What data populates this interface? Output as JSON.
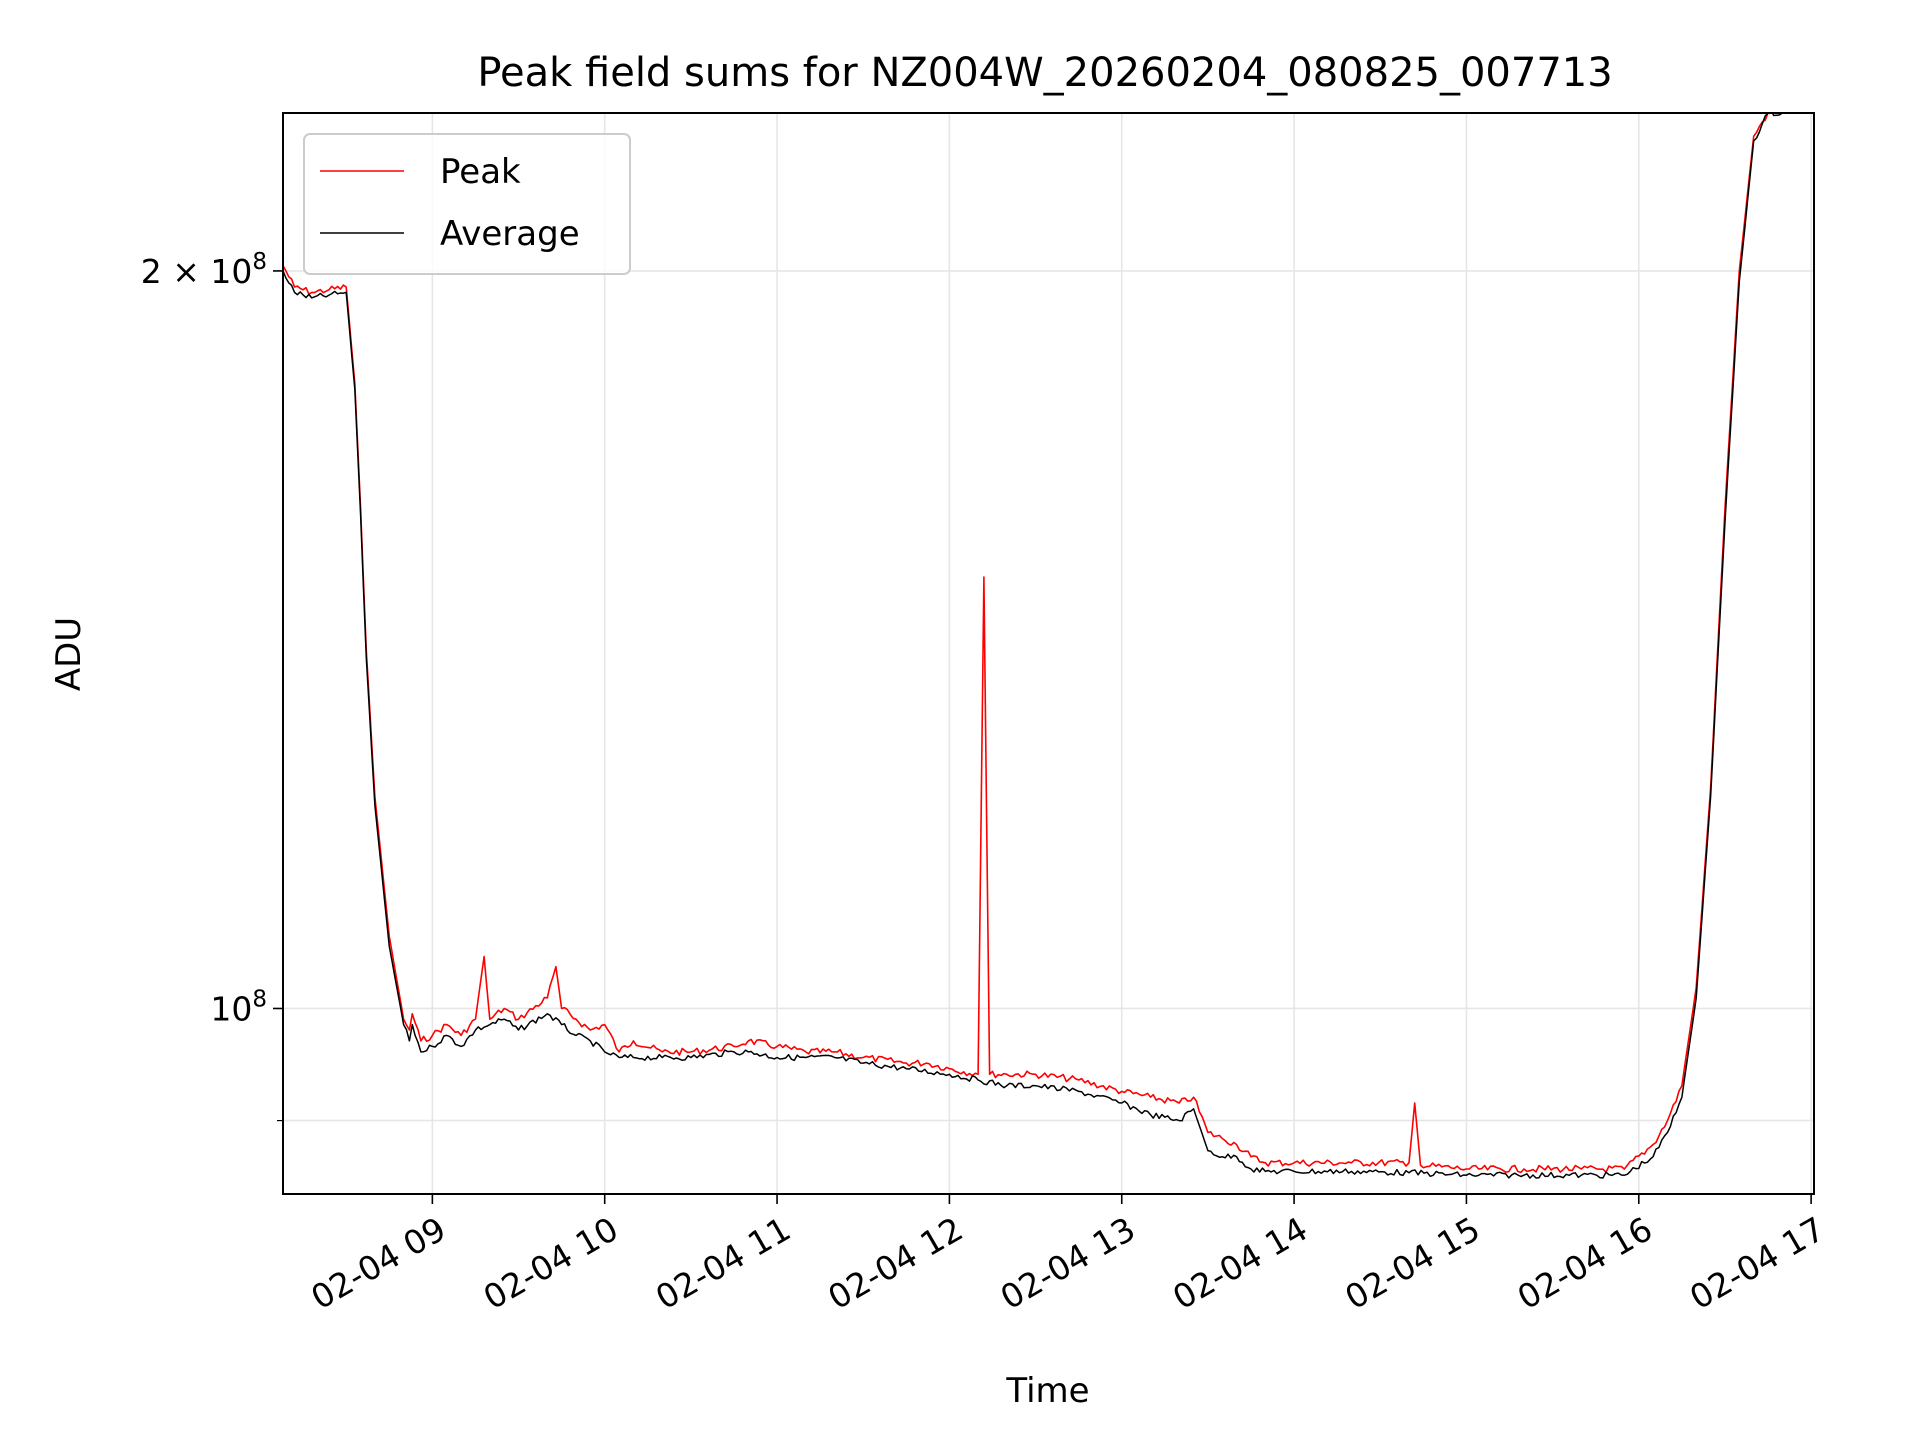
{
  "chart_data": {
    "type": "line",
    "title": "Peak field sums for NZ004W_20260204_080825_007713",
    "xlabel": "Time",
    "ylabel": "ADU",
    "yscale": "log",
    "ylim": [
      84000000,
      232000000
    ],
    "xlim": [
      "2026-02-04 08:08",
      "2026-02-04 17:01"
    ],
    "grid": true,
    "legend": "top-left",
    "x_ticks": [
      {
        "t": "2026-02-04 09:00",
        "label": "02-04 09"
      },
      {
        "t": "2026-02-04 10:00",
        "label": "02-04 10"
      },
      {
        "t": "2026-02-04 11:00",
        "label": "02-04 11"
      },
      {
        "t": "2026-02-04 12:00",
        "label": "02-04 12"
      },
      {
        "t": "2026-02-04 13:00",
        "label": "02-04 13"
      },
      {
        "t": "2026-02-04 14:00",
        "label": "02-04 14"
      },
      {
        "t": "2026-02-04 15:00",
        "label": "02-04 15"
      },
      {
        "t": "2026-02-04 16:00",
        "label": "02-04 16"
      },
      {
        "t": "2026-02-04 17:00",
        "label": "02-04 17"
      }
    ],
    "y_ticks": [
      {
        "value": 200000000,
        "base": "2 × 10",
        "exp": "8"
      },
      {
        "value": 100000000,
        "base": "10",
        "exp": "8"
      }
    ],
    "y_minor_ticks": [
      90000000
    ],
    "series": [
      {
        "name": "Peak",
        "color": "#ff0000",
        "x": [
          "2026-02-04 08:08",
          "2026-02-04 08:12",
          "2026-02-04 08:18",
          "2026-02-04 08:24",
          "2026-02-04 08:30",
          "2026-02-04 08:33",
          "2026-02-04 08:35",
          "2026-02-04 08:37",
          "2026-02-04 08:40",
          "2026-02-04 08:45",
          "2026-02-04 08:50",
          "2026-02-04 08:52",
          "2026-02-04 08:53",
          "2026-02-04 08:56",
          "2026-02-04 09:00",
          "2026-02-04 09:05",
          "2026-02-04 09:10",
          "2026-02-04 09:15",
          "2026-02-04 09:18",
          "2026-02-04 09:20",
          "2026-02-04 09:25",
          "2026-02-04 09:30",
          "2026-02-04 09:40",
          "2026-02-04 09:43",
          "2026-02-04 09:45",
          "2026-02-04 09:50",
          "2026-02-04 09:55",
          "2026-02-04 10:00",
          "2026-02-04 10:05",
          "2026-02-04 10:10",
          "2026-02-04 10:20",
          "2026-02-04 10:30",
          "2026-02-04 10:45",
          "2026-02-04 10:50",
          "2026-02-04 11:00",
          "2026-02-04 11:10",
          "2026-02-04 11:20",
          "2026-02-04 11:30",
          "2026-02-04 11:45",
          "2026-02-04 11:52",
          "2026-02-04 12:00",
          "2026-02-04 12:10",
          "2026-02-04 12:12",
          "2026-02-04 12:14",
          "2026-02-04 12:20",
          "2026-02-04 12:30",
          "2026-02-04 12:45",
          "2026-02-04 13:00",
          "2026-02-04 13:10",
          "2026-02-04 13:20",
          "2026-02-04 13:25",
          "2026-02-04 13:30",
          "2026-02-04 13:35",
          "2026-02-04 13:40",
          "2026-02-04 13:45",
          "2026-02-04 13:50",
          "2026-02-04 14:00",
          "2026-02-04 14:20",
          "2026-02-04 14:40",
          "2026-02-04 14:42",
          "2026-02-04 14:44",
          "2026-02-04 15:00",
          "2026-02-04 15:20",
          "2026-02-04 15:40",
          "2026-02-04 15:55",
          "2026-02-04 16:05",
          "2026-02-04 16:10",
          "2026-02-04 16:15",
          "2026-02-04 16:20",
          "2026-02-04 16:25",
          "2026-02-04 16:30",
          "2026-02-04 16:35",
          "2026-02-04 16:40",
          "2026-02-04 16:45",
          "2026-02-04 16:50"
        ],
        "y": [
          201000000,
          197000000,
          196000000,
          196500000,
          197000000,
          180000000,
          160000000,
          140000000,
          122000000,
          107000000,
          99000000,
          98000000,
          99500000,
          97000000,
          97500000,
          98500000,
          97500000,
          99000000,
          105000000,
          99000000,
          100000000,
          99000000,
          101000000,
          104000000,
          100000000,
          99000000,
          98000000,
          98500000,
          96000000,
          97000000,
          96000000,
          96000000,
          96500000,
          97000000,
          96500000,
          96000000,
          96000000,
          95500000,
          95000000,
          95000000,
          94500000,
          94000000,
          150000000,
          94000000,
          94000000,
          94000000,
          93500000,
          92500000,
          92000000,
          91500000,
          92000000,
          89000000,
          88500000,
          88000000,
          87000000,
          86500000,
          86500000,
          86500000,
          86500000,
          91500000,
          86300000,
          86000000,
          86000000,
          86000000,
          86000000,
          88000000,
          90000000,
          93000000,
          102000000,
          123000000,
          160000000,
          200000000,
          227000000,
          232000000,
          232000000
        ]
      },
      {
        "name": "Average",
        "color": "#000000",
        "x": [
          "2026-02-04 08:08",
          "2026-02-04 08:12",
          "2026-02-04 08:18",
          "2026-02-04 08:24",
          "2026-02-04 08:30",
          "2026-02-04 08:33",
          "2026-02-04 08:35",
          "2026-02-04 08:37",
          "2026-02-04 08:40",
          "2026-02-04 08:45",
          "2026-02-04 08:50",
          "2026-02-04 08:52",
          "2026-02-04 08:53",
          "2026-02-04 08:56",
          "2026-02-04 09:00",
          "2026-02-04 09:05",
          "2026-02-04 09:10",
          "2026-02-04 09:15",
          "2026-02-04 09:20",
          "2026-02-04 09:25",
          "2026-02-04 09:30",
          "2026-02-04 09:40",
          "2026-02-04 09:45",
          "2026-02-04 09:50",
          "2026-02-04 09:55",
          "2026-02-04 10:00",
          "2026-02-04 10:05",
          "2026-02-04 10:10",
          "2026-02-04 10:20",
          "2026-02-04 10:30",
          "2026-02-04 10:45",
          "2026-02-04 10:50",
          "2026-02-04 11:00",
          "2026-02-04 11:10",
          "2026-02-04 11:20",
          "2026-02-04 11:30",
          "2026-02-04 11:45",
          "2026-02-04 12:00",
          "2026-02-04 12:10",
          "2026-02-04 12:20",
          "2026-02-04 12:30",
          "2026-02-04 12:45",
          "2026-02-04 13:00",
          "2026-02-04 13:10",
          "2026-02-04 13:20",
          "2026-02-04 13:25",
          "2026-02-04 13:30",
          "2026-02-04 13:35",
          "2026-02-04 13:40",
          "2026-02-04 13:45",
          "2026-02-04 13:50",
          "2026-02-04 14:00",
          "2026-02-04 14:20",
          "2026-02-04 14:40",
          "2026-02-04 15:00",
          "2026-02-04 15:20",
          "2026-02-04 15:40",
          "2026-02-04 15:55",
          "2026-02-04 16:05",
          "2026-02-04 16:10",
          "2026-02-04 16:15",
          "2026-02-04 16:20",
          "2026-02-04 16:25",
          "2026-02-04 16:30",
          "2026-02-04 16:35",
          "2026-02-04 16:40",
          "2026-02-04 16:45",
          "2026-02-04 16:50"
        ],
        "y": [
          200000000,
          196000000,
          195000000,
          195500000,
          196000000,
          179000000,
          159000000,
          139000000,
          121000000,
          106000000,
          98500000,
          97000000,
          98500000,
          96000000,
          96500000,
          97500000,
          96500000,
          98000000,
          98500000,
          99000000,
          98000000,
          99500000,
          98500000,
          97500000,
          97000000,
          96000000,
          95500000,
          95500000,
          95500000,
          95500000,
          96000000,
          96000000,
          95500000,
          95500000,
          95500000,
          95000000,
          94500000,
          94000000,
          93500000,
          93000000,
          93000000,
          92500000,
          91500000,
          90500000,
          90000000,
          91000000,
          87500000,
          87000000,
          87000000,
          86000000,
          85800000,
          85800000,
          85800000,
          85700000,
          85500000,
          85500000,
          85500000,
          85500000,
          87000000,
          89000000,
          92000000,
          101000000,
          122000000,
          158000000,
          198000000,
          226000000,
          232000000,
          232000000
        ]
      }
    ]
  }
}
